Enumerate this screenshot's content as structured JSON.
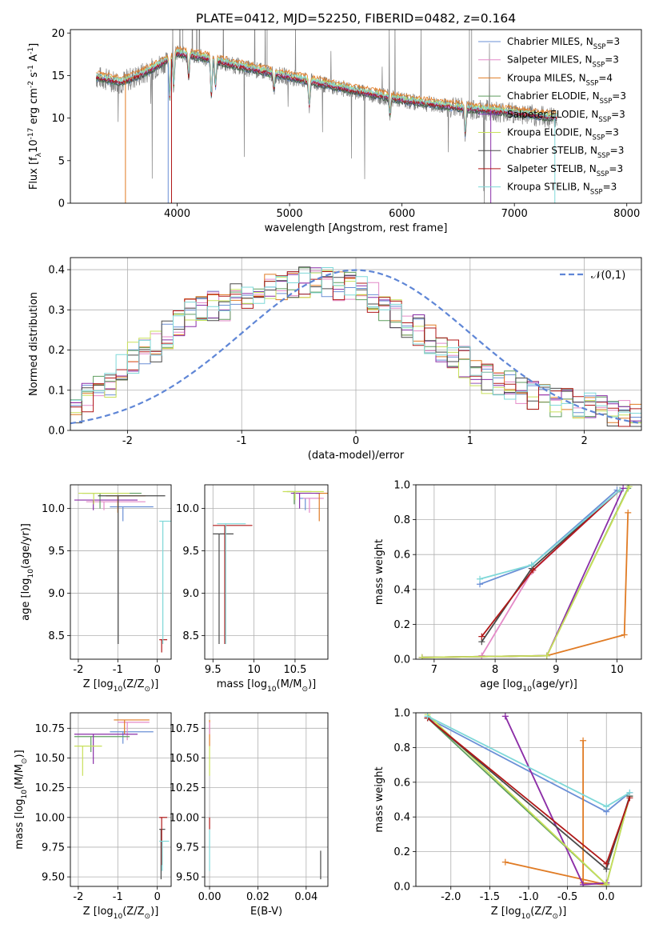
{
  "colors": {
    "Chabrier MILES": "#6a8fd6",
    "Salpeter MILES": "#e48ac8",
    "Kroupa MILES": "#e07b24",
    "Chabrier ELODIE": "#5f9e5f",
    "Salpeter ELODIE": "#8a2fa8",
    "Kroupa ELODIE": "#c8e05a",
    "Chabrier STELIB": "#4a4a4a",
    "Salpeter STELIB": "#b01818",
    "Kroupa STELIB": "#7ed8d8",
    "data": "#808080",
    "normal": "#5f86d6"
  },
  "chart_data": [
    {
      "id": "spectrum",
      "type": "line",
      "title": "PLATE=0412, MJD=52250, FIBERID=0482, z=0.164",
      "xlabel": "wavelength [Angstrom, rest frame]",
      "ylabel": "Flux [f$_\\lambda$10$^{-17}$ erg cm$^{-2}$ s$^{-1}$ A$^{-1}$]",
      "xlim": [
        3050,
        8130
      ],
      "ylim": [
        0,
        20.4
      ],
      "xticks": [
        4000,
        5000,
        6000,
        7000,
        8000
      ],
      "yticks": [
        0,
        5,
        10,
        15,
        20
      ],
      "legend_loc": "right",
      "legend": [
        "Chabrier MILES, N$_{SSP}$=3",
        "Salpeter MILES, N$_{SSP}$=3",
        "Kroupa MILES, N$_{SSP}$=4",
        "Chabrier ELODIE, N$_{SSP}$=3",
        "Salpeter ELODIE, N$_{SSP}$=3",
        "Kroupa ELODIE, N$_{SSP}$=3",
        "Chabrier STELIB, N$_{SSP}$=3",
        "Salpeter STELIB, N$_{SSP}$=3",
        "Kroupa STELIB, N$_{SSP}$=3"
      ],
      "continuum_x": [
        3280,
        3500,
        3700,
        3850,
        4000,
        4200,
        4500,
        5000,
        5500,
        6000,
        6500,
        7000,
        7300
      ],
      "continuum_y": [
        14.8,
        14.2,
        15.2,
        16.3,
        17.6,
        17.2,
        16.2,
        14.8,
        13.4,
        12.1,
        11.2,
        10.6,
        10.1
      ],
      "absorption": [
        [
          3934,
          4.5
        ],
        [
          3969,
          3.5
        ],
        [
          4102,
          2.5
        ],
        [
          4304,
          4.5
        ],
        [
          4341,
          3
        ],
        [
          4861,
          2
        ],
        [
          5175,
          3
        ],
        [
          5893,
          2
        ],
        [
          6563,
          3
        ]
      ],
      "model_edges": [
        [
          3540,
          3
        ],
        [
          3920,
          1
        ],
        [
          3950,
          8
        ],
        [
          6790,
          5
        ],
        [
          7360,
          9
        ]
      ]
    },
    {
      "id": "residuals",
      "type": "line",
      "xlabel": "(data-model)/error",
      "ylabel": "Normed distribution",
      "xlim": [
        -2.5,
        2.5
      ],
      "ylim": [
        0,
        0.43
      ],
      "xticks": [
        -2,
        -1,
        0,
        1,
        2
      ],
      "yticks": [
        0.0,
        0.1,
        0.2,
        0.3,
        0.4
      ],
      "legend_loc": "top-right",
      "legend": [
        "$\\mathcal{N}(0,1)$"
      ],
      "bin_edges": [
        -2.5,
        -2.4,
        -2.3,
        -2.2,
        -2.1,
        -2.0,
        -1.9,
        -1.8,
        -1.7,
        -1.6,
        -1.5,
        -1.4,
        -1.3,
        -1.2,
        -1.1,
        -1.0,
        -0.9,
        -0.8,
        -0.7,
        -0.6,
        -0.5,
        -0.4,
        -0.3,
        -0.2,
        -0.1,
        0.0,
        0.1,
        0.2,
        0.3,
        0.4,
        0.5,
        0.6,
        0.7,
        0.8,
        0.9,
        1.0,
        1.1,
        1.2,
        1.3,
        1.4,
        1.5,
        1.6,
        1.7,
        1.8,
        1.9,
        2.0,
        2.1,
        2.2,
        2.3,
        2.4,
        2.5
      ],
      "base_hist": [
        0.05,
        0.08,
        0.11,
        0.12,
        0.15,
        0.18,
        0.19,
        0.21,
        0.24,
        0.27,
        0.29,
        0.3,
        0.31,
        0.31,
        0.33,
        0.34,
        0.35,
        0.35,
        0.36,
        0.37,
        0.37,
        0.37,
        0.37,
        0.36,
        0.36,
        0.35,
        0.33,
        0.31,
        0.29,
        0.27,
        0.25,
        0.23,
        0.21,
        0.19,
        0.17,
        0.15,
        0.13,
        0.12,
        0.11,
        0.1,
        0.09,
        0.08,
        0.07,
        0.065,
        0.06,
        0.055,
        0.05,
        0.045,
        0.04,
        0.035
      ]
    },
    {
      "id": "age_vs_Z",
      "type": "scatter",
      "xlabel": "Z [log$_{10}$(Z/Z$_\\odot$)]",
      "ylabel": "age  [log$_{10}$($age/yr$)]",
      "xlim": [
        -2.2,
        0.35
      ],
      "ylim": [
        8.22,
        10.28
      ],
      "xticks": [
        -2,
        -1,
        0
      ],
      "yticks": [
        8.5,
        9.0,
        9.5,
        10.0
      ]
    },
    {
      "id": "age_vs_mass",
      "type": "scatter",
      "xlabel": "mass [log$_{10}$($M/M_\\odot$)]",
      "ylabel": "",
      "xlim": [
        9.4,
        10.9
      ],
      "ylim": [
        8.22,
        10.28
      ],
      "xticks": [
        9.5,
        10.0,
        10.5
      ],
      "yticks": [
        8.5,
        9.0,
        9.5,
        10.0
      ]
    },
    {
      "id": "weight_vs_age",
      "type": "line",
      "xlabel": "age  [log$_{10}$($age/yr$)]",
      "ylabel": "mass weight",
      "xlim": [
        6.7,
        10.4
      ],
      "ylim": [
        0,
        1.0
      ],
      "xticks": [
        7,
        8,
        9,
        10
      ],
      "yticks": [
        0.0,
        0.2,
        0.4,
        0.6,
        0.8,
        1.0
      ],
      "series": [
        {
          "model": "Chabrier MILES",
          "age": [
            7.75,
            8.6,
            10.0
          ],
          "weight": [
            0.43,
            0.54,
            0.97
          ]
        },
        {
          "model": "Salpeter MILES",
          "age": [
            7.78,
            8.6,
            10.05
          ],
          "weight": [
            0.02,
            0.5,
            0.97
          ]
        },
        {
          "model": "Kroupa MILES",
          "age": [
            6.8,
            8.85,
            10.12,
            10.18
          ],
          "weight": [
            0.01,
            0.02,
            0.14,
            0.84
          ]
        },
        {
          "model": "Chabrier ELODIE",
          "age": [
            6.8,
            8.85,
            10.18
          ],
          "weight": [
            0.01,
            0.02,
            0.98
          ]
        },
        {
          "model": "Salpeter ELODIE",
          "age": [
            6.8,
            8.85,
            10.1
          ],
          "weight": [
            0.01,
            0.02,
            0.98
          ]
        },
        {
          "model": "Kroupa ELODIE",
          "age": [
            6.8,
            8.85,
            10.2
          ],
          "weight": [
            0.01,
            0.02,
            0.99
          ]
        },
        {
          "model": "Chabrier STELIB",
          "age": [
            7.78,
            8.6,
            10.05
          ],
          "weight": [
            0.1,
            0.52,
            0.97
          ]
        },
        {
          "model": "Salpeter STELIB",
          "age": [
            7.78,
            8.62,
            10.05
          ],
          "weight": [
            0.13,
            0.51,
            0.97
          ]
        },
        {
          "model": "Kroupa STELIB",
          "age": [
            7.75,
            8.6,
            10.05
          ],
          "weight": [
            0.46,
            0.54,
            0.97
          ]
        }
      ]
    },
    {
      "id": "mass_vs_Z",
      "type": "scatter",
      "xlabel": "Z [log$_{10}$(Z/Z$_\\odot$)]",
      "ylabel": "mass [log$_{10}$($M/M_\\odot$)]",
      "xlim": [
        -2.2,
        0.35
      ],
      "ylim": [
        9.42,
        10.88
      ],
      "xticks": [
        -2,
        -1,
        0
      ],
      "yticks": [
        9.5,
        9.75,
        10.0,
        10.25,
        10.5,
        10.75
      ]
    },
    {
      "id": "mass_vs_ebv",
      "type": "scatter",
      "xlabel": "E(B-V)",
      "ylabel": "",
      "xlim": [
        -0.002,
        0.049
      ],
      "ylim": [
        9.42,
        10.88
      ],
      "xticks": [
        0.0,
        0.02,
        0.04
      ],
      "yticks": [
        9.5,
        9.75,
        10.0,
        10.25,
        10.5,
        10.75
      ]
    },
    {
      "id": "weight_vs_Z",
      "type": "line",
      "xlabel": "Z [log$_{10}$(Z/Z$_\\odot$)]",
      "ylabel": "mass weight",
      "xlim": [
        -2.45,
        0.45
      ],
      "ylim": [
        0,
        1.0
      ],
      "xticks": [
        -2.0,
        -1.5,
        -1.0,
        -0.5,
        0.0
      ],
      "yticks": [
        0.0,
        0.2,
        0.4,
        0.6,
        0.8,
        1.0
      ],
      "series": [
        {
          "model": "Chabrier MILES",
          "Z": [
            -2.3,
            0.0,
            0.3
          ],
          "weight": [
            0.97,
            0.43,
            0.54
          ]
        },
        {
          "model": "Salpeter MILES",
          "Z": [
            -1.3,
            -0.3,
            0.0
          ],
          "weight": [
            0.98,
            0.01,
            0.02
          ]
        },
        {
          "model": "Kroupa MILES",
          "Z": [
            -1.3,
            0.0,
            -0.3,
            -0.3
          ],
          "weight": [
            0.14,
            0.01,
            0.02,
            0.84
          ]
        },
        {
          "model": "Chabrier ELODIE",
          "Z": [
            -2.3,
            0.0,
            0.3
          ],
          "weight": [
            0.97,
            0.01,
            0.52
          ]
        },
        {
          "model": "Salpeter ELODIE",
          "Z": [
            -1.3,
            -0.3,
            0.0
          ],
          "weight": [
            0.98,
            0.01,
            0.02
          ]
        },
        {
          "model": "Kroupa ELODIE",
          "Z": [
            -2.3,
            0.0,
            0.3
          ],
          "weight": [
            0.99,
            0.01,
            0.52
          ]
        },
        {
          "model": "Chabrier STELIB",
          "Z": [
            -2.3,
            0.0,
            0.3
          ],
          "weight": [
            0.97,
            0.1,
            0.52
          ]
        },
        {
          "model": "Salpeter STELIB",
          "Z": [
            -2.3,
            0.0,
            0.3
          ],
          "weight": [
            0.97,
            0.13,
            0.51
          ]
        },
        {
          "model": "Kroupa STELIB",
          "Z": [
            -2.3,
            0.0,
            0.3
          ],
          "weight": [
            0.98,
            0.46,
            0.54
          ]
        }
      ]
    }
  ],
  "cross_marks": {
    "age_vs_Z": [
      {
        "model": "Chabrier MILES",
        "Z": [
          -1.2,
          -0.1
        ],
        "age": [
          9.85,
          10.02
        ]
      },
      {
        "model": "Salpeter MILES",
        "Z": [
          -1.8,
          -0.3
        ],
        "age": [
          9.98,
          10.08
        ]
      },
      {
        "model": "Kroupa MILES",
        "Z": [
          -1.3,
          -0.3
        ],
        "age": [
          9.95,
          10.15
        ]
      },
      {
        "model": "Chabrier ELODIE",
        "Z": [
          -1.9,
          -0.4
        ],
        "age": [
          10.0,
          10.18
        ]
      },
      {
        "model": "Salpeter ELODIE",
        "Z": [
          -2.1,
          -0.5
        ],
        "age": [
          9.98,
          10.1
        ]
      },
      {
        "model": "Kroupa ELODIE",
        "Z": [
          -2.0,
          -0.7
        ],
        "age": [
          10.05,
          10.18
        ]
      },
      {
        "model": "Chabrier STELIB",
        "Z": [
          -1.5,
          0.2
        ],
        "age": [
          8.4,
          10.15
        ]
      },
      {
        "model": "Salpeter STELIB",
        "Z": [
          0.05,
          0.25
        ],
        "age": [
          8.3,
          8.45
        ]
      },
      {
        "model": "Kroupa STELIB",
        "Z": [
          0.05,
          0.35
        ],
        "age": [
          8.4,
          9.85
        ]
      }
    ],
    "age_vs_mass": [
      {
        "model": "Chabrier MILES",
        "mass": [
          10.55,
          10.8
        ],
        "age": [
          9.98,
          10.12
        ]
      },
      {
        "model": "Salpeter MILES",
        "mass": [
          10.6,
          10.85
        ],
        "age": [
          9.95,
          10.12
        ]
      },
      {
        "model": "Kroupa MILES",
        "mass": [
          10.75,
          10.9
        ],
        "age": [
          9.85,
          10.18
        ]
      },
      {
        "model": "Chabrier ELODIE",
        "mass": [
          10.4,
          10.7
        ],
        "age": [
          10.05,
          10.2
        ]
      },
      {
        "model": "Salpeter ELODIE",
        "mass": [
          10.45,
          10.8
        ],
        "age": [
          10.0,
          10.18
        ]
      },
      {
        "model": "Kroupa ELODIE",
        "mass": [
          10.35,
          10.85
        ],
        "age": [
          10.1,
          10.2
        ]
      },
      {
        "model": "Chabrier STELIB",
        "mass": [
          9.5,
          9.75
        ],
        "age": [
          8.4,
          9.7
        ]
      },
      {
        "model": "Salpeter STELIB",
        "mass": [
          9.5,
          9.98
        ],
        "age": [
          8.4,
          9.8
        ]
      },
      {
        "model": "Kroupa STELIB",
        "mass": [
          9.55,
          9.9
        ],
        "age": [
          8.4,
          9.82
        ]
      }
    ],
    "mass_vs_Z": [
      {
        "model": "Chabrier MILES",
        "Z": [
          -1.2,
          -0.1
        ],
        "mass": [
          10.62,
          10.72
        ]
      },
      {
        "model": "Salpeter MILES",
        "Z": [
          -1.0,
          -0.2
        ],
        "mass": [
          10.65,
          10.8
        ]
      },
      {
        "model": "Kroupa MILES",
        "Z": [
          -1.1,
          -0.2
        ],
        "mass": [
          10.7,
          10.82
        ]
      },
      {
        "model": "Chabrier ELODIE",
        "Z": [
          -2.1,
          -0.7
        ],
        "mass": [
          10.55,
          10.68
        ]
      },
      {
        "model": "Salpeter ELODIE",
        "Z": [
          -2.1,
          -0.5
        ],
        "mass": [
          10.45,
          10.7
        ]
      },
      {
        "model": "Kroupa ELODIE",
        "Z": [
          -2.1,
          -1.4
        ],
        "mass": [
          10.35,
          10.6
        ]
      },
      {
        "model": "Chabrier STELIB",
        "Z": [
          0.05,
          0.2
        ],
        "mass": [
          9.48,
          9.9
        ]
      },
      {
        "model": "Salpeter STELIB",
        "Z": [
          0.05,
          0.25
        ],
        "mass": [
          9.6,
          10.0
        ]
      },
      {
        "model": "Kroupa STELIB",
        "Z": [
          0.05,
          0.3
        ],
        "mass": [
          9.55,
          9.8
        ]
      }
    ],
    "mass_vs_ebv": [
      {
        "model": "Kroupa MILES",
        "ebv": [
          0.0,
          0.0
        ],
        "mass": [
          10.6,
          10.82
        ]
      },
      {
        "model": "Salpeter MILES",
        "ebv": [
          0.0,
          0.0
        ],
        "mass": [
          10.7,
          10.8
        ]
      },
      {
        "model": "Kroupa ELODIE",
        "ebv": [
          0.0,
          0.0
        ],
        "mass": [
          10.35,
          10.6
        ]
      },
      {
        "model": "Salpeter STELIB",
        "ebv": [
          0.0,
          0.0
        ],
        "mass": [
          9.9,
          10.0
        ]
      },
      {
        "model": "Kroupa STELIB",
        "ebv": [
          0.0,
          0.0
        ],
        "mass": [
          9.55,
          9.9
        ]
      },
      {
        "model": "Chabrier STELIB",
        "ebv": [
          0.046,
          0.046
        ],
        "mass": [
          9.48,
          9.72
        ]
      }
    ]
  }
}
